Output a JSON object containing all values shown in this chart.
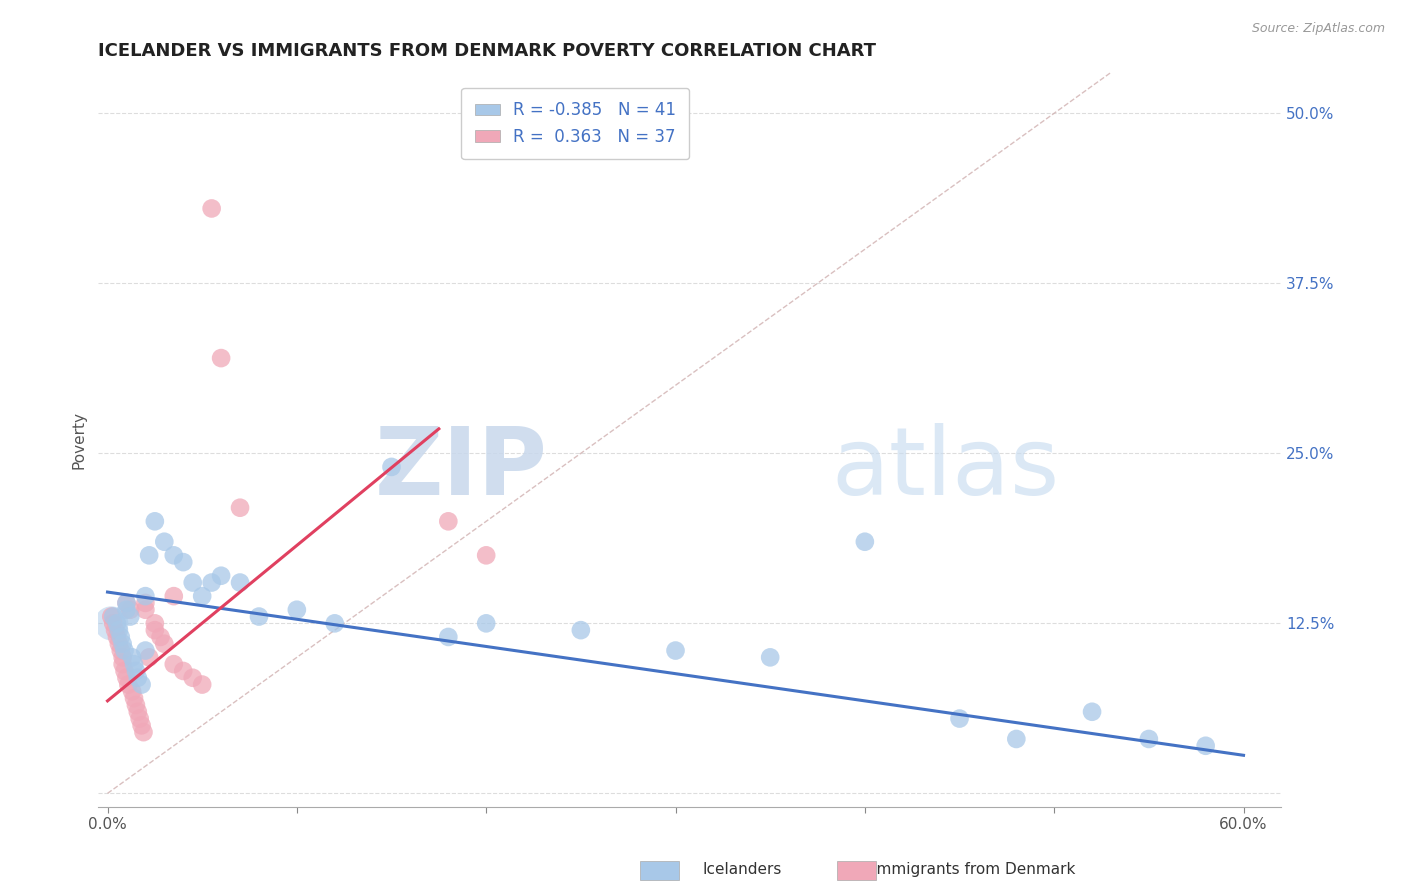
{
  "title": "ICELANDER VS IMMIGRANTS FROM DENMARK POVERTY CORRELATION CHART",
  "source_text": "Source: ZipAtlas.com",
  "ylabel": "Poverty",
  "watermark_zip": "ZIP",
  "watermark_atlas": "atlas",
  "xlim": [
    -0.005,
    0.62
  ],
  "ylim": [
    -0.01,
    0.53
  ],
  "xticks": [
    0.0,
    0.1,
    0.2,
    0.3,
    0.4,
    0.5,
    0.6
  ],
  "xticklabels": [
    "0.0%",
    "",
    "",
    "",
    "",
    "",
    "60.0%"
  ],
  "yticks": [
    0.0,
    0.125,
    0.25,
    0.375,
    0.5
  ],
  "yticklabels": [
    "",
    "12.5%",
    "25.0%",
    "37.5%",
    "50.0%"
  ],
  "blue_color": "#A8C8E8",
  "pink_color": "#F0A8B8",
  "blue_line_color": "#4472C4",
  "pink_line_color": "#E04060",
  "diag_color": "#D0B0B0",
  "grid_color": "#DDDDDD",
  "legend_label_blue": "R = -0.385   N = 41",
  "legend_label_pink": "R =  0.363   N = 37",
  "blue_scatter_x": [
    0.003,
    0.005,
    0.006,
    0.007,
    0.008,
    0.009,
    0.01,
    0.01,
    0.012,
    0.013,
    0.014,
    0.015,
    0.016,
    0.018,
    0.02,
    0.02,
    0.022,
    0.025,
    0.03,
    0.035,
    0.04,
    0.045,
    0.05,
    0.055,
    0.06,
    0.07,
    0.08,
    0.1,
    0.12,
    0.15,
    0.18,
    0.2,
    0.25,
    0.3,
    0.35,
    0.4,
    0.45,
    0.48,
    0.52,
    0.55,
    0.58
  ],
  "blue_scatter_y": [
    0.13,
    0.125,
    0.12,
    0.115,
    0.11,
    0.105,
    0.14,
    0.135,
    0.13,
    0.1,
    0.095,
    0.09,
    0.085,
    0.08,
    0.145,
    0.105,
    0.175,
    0.2,
    0.185,
    0.175,
    0.17,
    0.155,
    0.145,
    0.155,
    0.16,
    0.155,
    0.13,
    0.135,
    0.125,
    0.24,
    0.115,
    0.125,
    0.12,
    0.105,
    0.1,
    0.185,
    0.055,
    0.04,
    0.06,
    0.04,
    0.035
  ],
  "pink_scatter_x": [
    0.002,
    0.003,
    0.004,
    0.005,
    0.006,
    0.007,
    0.008,
    0.008,
    0.009,
    0.01,
    0.01,
    0.011,
    0.012,
    0.013,
    0.014,
    0.015,
    0.016,
    0.017,
    0.018,
    0.019,
    0.02,
    0.02,
    0.022,
    0.025,
    0.025,
    0.028,
    0.03,
    0.035,
    0.035,
    0.04,
    0.045,
    0.05,
    0.055,
    0.06,
    0.07,
    0.18,
    0.2
  ],
  "pink_scatter_y": [
    0.13,
    0.125,
    0.12,
    0.115,
    0.11,
    0.105,
    0.1,
    0.095,
    0.09,
    0.14,
    0.085,
    0.08,
    0.135,
    0.075,
    0.07,
    0.065,
    0.06,
    0.055,
    0.05,
    0.045,
    0.14,
    0.135,
    0.1,
    0.125,
    0.12,
    0.115,
    0.11,
    0.095,
    0.145,
    0.09,
    0.085,
    0.08,
    0.43,
    0.32,
    0.21,
    0.2,
    0.175
  ],
  "blue_line_x0": 0.0,
  "blue_line_x1": 0.6,
  "blue_line_y0": 0.148,
  "blue_line_y1": 0.028,
  "pink_line_x0": 0.0,
  "pink_line_x1": 0.175,
  "pink_line_y0": 0.068,
  "pink_line_y1": 0.268,
  "dot_size": 180,
  "big_dot_size": 600,
  "title_fontsize": 13,
  "axis_label_fontsize": 11,
  "tick_fontsize": 11,
  "legend_fontsize": 12
}
